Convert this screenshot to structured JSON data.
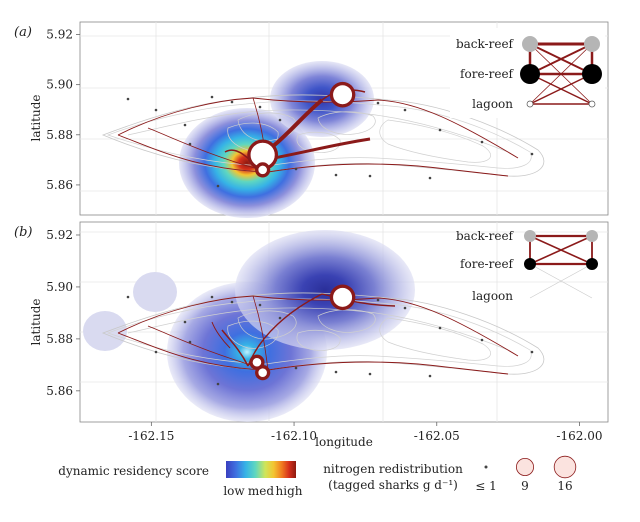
{
  "chart_data": [
    {
      "type": "network-map",
      "panel_label": "(a)",
      "xlabel": "",
      "ylabel": "latitude",
      "xlim": [
        -162.175,
        -161.99
      ],
      "ylim": [
        5.848,
        5.925
      ],
      "yticks": [
        "5.86",
        "5.88",
        "5.90",
        "5.92"
      ],
      "ytick_values": [
        5.86,
        5.88,
        5.9,
        5.92
      ],
      "xticks": [],
      "hotspots": [
        {
          "lon": -162.111,
          "lat": 5.872,
          "intensity": "high"
        },
        {
          "lon": -162.083,
          "lat": 5.896,
          "intensity": "med"
        }
      ],
      "nodes": [
        {
          "lon": -162.111,
          "lat": 5.872,
          "size": 16
        },
        {
          "lon": -162.083,
          "lat": 5.896,
          "size": 9
        },
        {
          "lon": -162.111,
          "lat": 5.866,
          "size": 1
        }
      ],
      "inset": {
        "labels": [
          "back-reef",
          "fore-reef",
          "lagoon"
        ],
        "node_colors": [
          "#b5b5b5",
          "#000000",
          "#ffffff"
        ]
      }
    },
    {
      "type": "network-map",
      "panel_label": "(b)",
      "xlabel": "longitude",
      "ylabel": "latitude",
      "xlim": [
        -162.175,
        -161.99
      ],
      "ylim": [
        5.848,
        5.925
      ],
      "yticks": [
        "5.86",
        "5.88",
        "5.90",
        "5.92"
      ],
      "ytick_values": [
        5.86,
        5.88,
        5.9,
        5.92
      ],
      "xticks": [
        "-162.15",
        "-162.10",
        "-162.05",
        "-162.00"
      ],
      "xtick_values": [
        -162.15,
        -162.1,
        -162.05,
        -162.0
      ],
      "hotspots": [
        {
          "lon": -162.111,
          "lat": 5.868,
          "intensity": "med"
        },
        {
          "lon": -162.083,
          "lat": 5.896,
          "intensity": "low"
        }
      ],
      "nodes": [
        {
          "lon": -162.083,
          "lat": 5.896,
          "size": 9
        },
        {
          "lon": -162.111,
          "lat": 5.867,
          "size": 1
        },
        {
          "lon": -162.113,
          "lat": 5.871,
          "size": 1
        }
      ],
      "inset": {
        "labels": [
          "back-reef",
          "fore-reef",
          "lagoon"
        ],
        "node_colors": [
          "#b5b5b5",
          "#000000",
          "#ffffff"
        ]
      }
    }
  ],
  "legend": {
    "colorbar_title": "dynamic residency score",
    "colorbar_labels": [
      "low",
      "med",
      "high"
    ],
    "colorbar_colors": [
      "#3a3fbf",
      "#3f6fe0",
      "#36b3e6",
      "#5fd7c0",
      "#cfe55a",
      "#f3c531",
      "#f07a20",
      "#d6301c",
      "#8c1a10"
    ],
    "size_title_1": "nitrogen redistribution",
    "size_title_2": "(tagged sharks g d⁻¹)",
    "sizes": [
      {
        "label": "≤ 1",
        "value": 1
      },
      {
        "label": "9",
        "value": 9
      },
      {
        "label": "16",
        "value": 16
      }
    ]
  },
  "colors": {
    "edge": "#8b1a1a",
    "contour": "#c8c8c8",
    "grid": "#e6e6e6"
  }
}
